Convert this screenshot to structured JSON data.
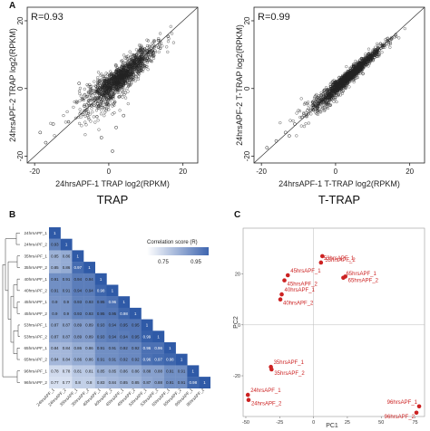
{
  "panels": {
    "a": "A",
    "b": "B",
    "c": "C"
  },
  "chart_data": [
    {
      "type": "scatter",
      "panel": "A-left",
      "title": "TRAP",
      "xlabel": "24hrsAPF-1 TRAP log2(RPKM)",
      "ylabel": "24hrsAPF-2 TRAP log2(RPKM)",
      "xlim": [
        -22,
        24
      ],
      "ylim": [
        -22,
        24
      ],
      "xticks": [
        "-20",
        "0",
        "20"
      ],
      "yticks": [
        "-20",
        "0",
        "20"
      ],
      "annotation": "R=0.93",
      "identity_line": true,
      "cloud": {
        "center": [
          3,
          3
        ],
        "spread_along": 6.5,
        "spread_across": 1.4
      },
      "outliers": [
        [
          -18.5,
          -13
        ],
        [
          -17,
          -16
        ],
        [
          -15,
          -10.5
        ],
        [
          -5,
          0.5
        ],
        [
          -8,
          1.5
        ],
        [
          -2,
          -14.5
        ],
        [
          1,
          -18.5
        ],
        [
          2,
          -11.5
        ],
        [
          4,
          -8
        ],
        [
          6,
          2.5
        ],
        [
          -3,
          -4.5
        ],
        [
          9,
          11.5
        ]
      ]
    },
    {
      "type": "scatter",
      "panel": "A-right",
      "title": "T-TRAP",
      "xlabel": "24hrsAPF-1 T-TRAP log2(RPKM)",
      "ylabel": "24hrsAPF-2 T-TRAP log2(RPKM)",
      "xlim": [
        -22,
        24
      ],
      "ylim": [
        -22,
        24
      ],
      "xticks": [
        "-20",
        "0",
        "20"
      ],
      "yticks": [
        "-20",
        "0",
        "20"
      ],
      "annotation": "R=0.99",
      "identity_line": true,
      "cloud": {
        "center": [
          3,
          3
        ],
        "spread_along": 6.5,
        "spread_across": 0.7
      },
      "outliers": [
        [
          -18.5,
          -17.5
        ],
        [
          -16,
          -15.5
        ],
        [
          -13.5,
          -13
        ],
        [
          -11,
          -10.5
        ],
        [
          -9,
          -8.5
        ],
        [
          -7.5,
          -6.5
        ],
        [
          -12.5,
          -14
        ],
        [
          -6,
          -5
        ]
      ]
    },
    {
      "type": "heatmap",
      "panel": "B",
      "legend_title": "Correlation score (R)",
      "legend_ticks": [
        "0.75",
        "0.95"
      ],
      "color_range": [
        0.75,
        1.0
      ],
      "samples": [
        "24hrsAPF_1",
        "24hrsAPF_2",
        "35hrsAPF_1",
        "35hrsAPF_2",
        "40hrsAPF_1",
        "40hrsAPF_2",
        "45hrsAPF_1",
        "45hrsAPF_2",
        "53hrsAPF_1",
        "53hrsAPF_2",
        "65hrsAPF_1",
        "65hrsAPF_2",
        "96hrsAPF_1",
        "96hrsAPF_2"
      ],
      "matrix": [
        [
          "1"
        ],
        [
          "0.93",
          "1"
        ],
        [
          "0.85",
          "0.86",
          "1"
        ],
        [
          "0.85",
          "0.86",
          "0.97",
          "1"
        ],
        [
          "0.91",
          "0.91",
          "0.94",
          "0.94",
          "1"
        ],
        [
          "0.91",
          "0.91",
          "0.94",
          "0.94",
          "0.98",
          "1"
        ],
        [
          "0.9",
          "0.9",
          "0.93",
          "0.93",
          "0.95",
          "0.96",
          "1"
        ],
        [
          "0.9",
          "0.9",
          "0.93",
          "0.93",
          "0.95",
          "0.95",
          "0.98",
          "1"
        ],
        [
          "0.87",
          "0.87",
          "0.89",
          "0.89",
          "0.93",
          "0.94",
          "0.95",
          "0.95",
          "1"
        ],
        [
          "0.87",
          "0.87",
          "0.89",
          "0.89",
          "0.93",
          "0.94",
          "0.94",
          "0.95",
          "0.99",
          "1"
        ],
        [
          "0.84",
          "0.84",
          "0.86",
          "0.86",
          "0.91",
          "0.91",
          "0.92",
          "0.92",
          "0.96",
          "0.96",
          "1"
        ],
        [
          "0.84",
          "0.84",
          "0.86",
          "0.86",
          "0.91",
          "0.91",
          "0.92",
          "0.92",
          "0.96",
          "0.97",
          "0.98",
          "1"
        ],
        [
          "0.78",
          "0.78",
          "0.81",
          "0.81",
          "0.85",
          "0.85",
          "0.86",
          "0.86",
          "0.88",
          "0.88",
          "0.91",
          "0.91",
          "1"
        ],
        [
          "0.77",
          "0.77",
          "0.8",
          "0.8",
          "0.83",
          "0.84",
          "0.85",
          "0.85",
          "0.87",
          "0.88",
          "0.91",
          "0.91",
          "0.98",
          "1"
        ]
      ]
    },
    {
      "type": "scatter",
      "panel": "C",
      "xlabel": "PC1",
      "ylabel": "PC2",
      "xlim": [
        -52,
        82
      ],
      "ylim": [
        -36,
        38
      ],
      "xticks": [
        -50,
        -25,
        0,
        25,
        50,
        75
      ],
      "yticks": [
        -20,
        0,
        20
      ],
      "color": "#cc2222",
      "points": [
        {
          "label": "24hrsAPF_1",
          "x": -48.5,
          "y": -27.5
        },
        {
          "label": "24hrsAPF_2",
          "x": -48,
          "y": -29.5
        },
        {
          "label": "35hrsAPF_1",
          "x": -31.5,
          "y": -16.5
        },
        {
          "label": "35hrsAPF_2",
          "x": -31,
          "y": -17.5
        },
        {
          "label": "40hrsAPF_1",
          "x": -23.5,
          "y": 12
        },
        {
          "label": "40hrsAPF_2",
          "x": -24.5,
          "y": 10
        },
        {
          "label": "45hrsAPF_1",
          "x": -19,
          "y": 19.5
        },
        {
          "label": "45hrsAPF_2",
          "x": -21.5,
          "y": 17.5
        },
        {
          "label": "53hrsAPF_1",
          "x": 5.5,
          "y": 24.5
        },
        {
          "label": "53hrsAPF_2",
          "x": 6.5,
          "y": 27
        },
        {
          "label": "65hrsAPF_1",
          "x": 22,
          "y": 18.5
        },
        {
          "label": "65hrsAPF_2",
          "x": 23.5,
          "y": 19
        },
        {
          "label": "96hrsAPF_1",
          "x": 78,
          "y": -32
        },
        {
          "label": "96hrsAPF_2",
          "x": 76,
          "y": -34.5
        }
      ]
    }
  ]
}
